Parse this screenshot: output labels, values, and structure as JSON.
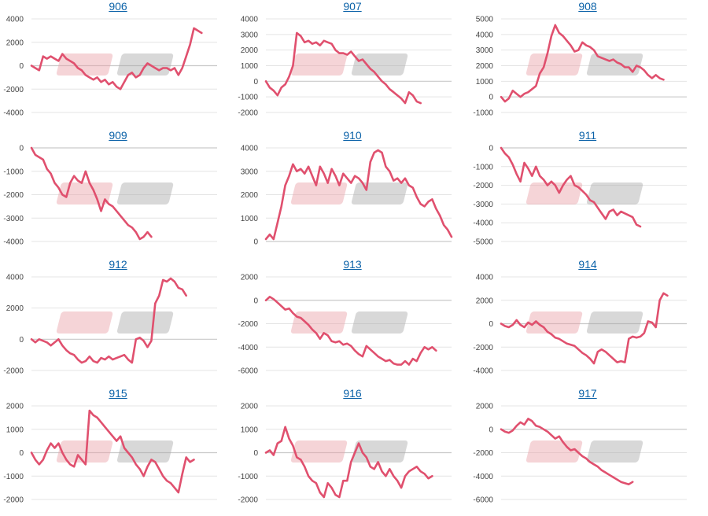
{
  "colors": {
    "line": "#e0506e",
    "title": "#0b62a8",
    "watermark_a": "#e8a0a6",
    "watermark_b": "#a8a8a8"
  },
  "watermark": {
    "icon": "minhyo-logo-watermark"
  },
  "chart_data": [
    {
      "type": "line",
      "title": "906",
      "yticks": [
        4000,
        2000,
        0,
        -2000,
        -4000
      ],
      "ylim": [
        -4000,
        4000
      ],
      "values": [
        0,
        -200,
        -400,
        800,
        600,
        800,
        600,
        400,
        1000,
        600,
        400,
        200,
        -200,
        -400,
        -800,
        -1000,
        -1200,
        -1000,
        -1400,
        -1200,
        -1600,
        -1400,
        -1800,
        -2000,
        -1400,
        -800,
        -600,
        -1000,
        -800,
        -200,
        200,
        0,
        -200,
        -400,
        -200,
        -200,
        -400,
        -200,
        -800,
        -200,
        800,
        1800,
        3200,
        3000,
        2800
      ]
    },
    {
      "type": "line",
      "title": "907",
      "yticks": [
        4000,
        3000,
        2000,
        1000,
        0,
        -1000,
        -2000
      ],
      "ylim": [
        -2000,
        4000
      ],
      "values": [
        0,
        -400,
        -600,
        -900,
        -400,
        -200,
        300,
        1000,
        3100,
        2900,
        2500,
        2600,
        2400,
        2500,
        2300,
        2600,
        2500,
        2400,
        2000,
        1800,
        1800,
        1700,
        1900,
        1600,
        1300,
        1400,
        1100,
        800,
        600,
        300,
        0,
        -200,
        -500,
        -700,
        -900,
        -1100,
        -1400,
        -700,
        -900,
        -1300,
        -1400
      ]
    },
    {
      "type": "line",
      "title": "908",
      "yticks": [
        5000,
        4000,
        3000,
        2000,
        1000,
        0,
        -1000
      ],
      "ylim": [
        -1000,
        5000
      ],
      "values": [
        0,
        -300,
        -100,
        400,
        200,
        0,
        200,
        300,
        500,
        700,
        1500,
        1900,
        2800,
        3900,
        4600,
        4100,
        3900,
        3600,
        3300,
        2900,
        3000,
        3500,
        3300,
        3200,
        3000,
        2600,
        2500,
        2400,
        2300,
        2400,
        2200,
        2100,
        1900,
        1900,
        1600,
        2000,
        1900,
        1700,
        1400,
        1200,
        1400,
        1200,
        1100
      ]
    },
    {
      "type": "line",
      "title": "909",
      "yticks": [
        0,
        -1000,
        -2000,
        -3000,
        -4000
      ],
      "ylim": [
        -4000,
        0
      ],
      "values": [
        0,
        -300,
        -400,
        -500,
        -900,
        -1100,
        -1500,
        -1700,
        -2000,
        -2100,
        -1500,
        -1200,
        -1400,
        -1500,
        -1000,
        -1500,
        -1800,
        -2200,
        -2700,
        -2200,
        -2400,
        -2500,
        -2700,
        -2900,
        -3100,
        -3300,
        -3400,
        -3600,
        -3900,
        -3800,
        -3600,
        -3800
      ]
    },
    {
      "type": "line",
      "title": "910",
      "yticks": [
        4000,
        3000,
        2000,
        1000,
        0
      ],
      "ylim": [
        0,
        4000
      ],
      "values": [
        100,
        300,
        100,
        800,
        1500,
        2400,
        2800,
        3300,
        3000,
        3100,
        2900,
        3200,
        2800,
        2400,
        3200,
        2900,
        2500,
        3100,
        2800,
        2400,
        2900,
        2700,
        2500,
        2800,
        2700,
        2500,
        2200,
        3400,
        3800,
        3900,
        3800,
        3200,
        3000,
        2600,
        2700,
        2500,
        2700,
        2400,
        2300,
        1900,
        1600,
        1500,
        1700,
        1800,
        1400,
        1100,
        700,
        500,
        200
      ]
    },
    {
      "type": "line",
      "title": "911",
      "yticks": [
        0,
        -1000,
        -2000,
        -3000,
        -4000,
        -5000
      ],
      "ylim": [
        -5000,
        0
      ],
      "values": [
        0,
        -300,
        -500,
        -900,
        -1400,
        -1800,
        -800,
        -1100,
        -1500,
        -1000,
        -1500,
        -1700,
        -2000,
        -1800,
        -2000,
        -2400,
        -2000,
        -1700,
        -1500,
        -2000,
        -2100,
        -2300,
        -2500,
        -2800,
        -2900,
        -3200,
        -3500,
        -3800,
        -3400,
        -3300,
        -3600,
        -3400,
        -3500,
        -3600,
        -3700,
        -4100,
        -4200
      ]
    },
    {
      "type": "line",
      "title": "912",
      "yticks": [
        4000,
        2000,
        0,
        -2000
      ],
      "ylim": [
        -2000,
        4000
      ],
      "values": [
        0,
        -200,
        0,
        -100,
        -200,
        -400,
        -200,
        0,
        -400,
        -700,
        -900,
        -1000,
        -1300,
        -1500,
        -1400,
        -1100,
        -1400,
        -1500,
        -1200,
        -1300,
        -1100,
        -1300,
        -1200,
        -1100,
        -1000,
        -1300,
        -1500,
        0,
        100,
        -100,
        -500,
        -100,
        2300,
        2800,
        3800,
        3700,
        3900,
        3700,
        3300,
        3200,
        2800
      ]
    },
    {
      "type": "line",
      "title": "913",
      "yticks": [
        2000,
        0,
        -2000,
        -4000,
        -6000
      ],
      "ylim": [
        -6000,
        2000
      ],
      "values": [
        0,
        300,
        100,
        -200,
        -500,
        -800,
        -700,
        -1100,
        -1400,
        -1500,
        -1800,
        -2100,
        -2500,
        -2800,
        -3300,
        -2800,
        -3000,
        -3500,
        -3600,
        -3500,
        -3800,
        -3700,
        -3900,
        -4300,
        -4600,
        -4800,
        -3900,
        -4200,
        -4500,
        -4800,
        -5000,
        -5200,
        -5100,
        -5400,
        -5500,
        -5500,
        -5200,
        -5500,
        -5000,
        -5200,
        -4500,
        -4000,
        -4200,
        -4000,
        -4300
      ]
    },
    {
      "type": "line",
      "title": "914",
      "yticks": [
        4000,
        2000,
        0,
        -2000,
        -4000
      ],
      "ylim": [
        -4000,
        4000
      ],
      "values": [
        0,
        -200,
        -300,
        -100,
        300,
        -100,
        -300,
        100,
        -100,
        200,
        -100,
        -300,
        -700,
        -900,
        -1200,
        -1300,
        -1500,
        -1700,
        -1800,
        -1900,
        -2200,
        -2500,
        -2700,
        -3000,
        -3400,
        -2400,
        -2200,
        -2400,
        -2700,
        -3000,
        -3300,
        -3200,
        -3300,
        -1300,
        -1100,
        -1200,
        -1100,
        -800,
        200,
        100,
        -300,
        2000,
        2600,
        2400
      ]
    },
    {
      "type": "line",
      "title": "915",
      "yticks": [
        2000,
        1000,
        0,
        -1000,
        -2000
      ],
      "ylim": [
        -2000,
        2000
      ],
      "values": [
        0,
        -300,
        -500,
        -300,
        100,
        400,
        200,
        400,
        0,
        -300,
        -500,
        -600,
        -100,
        -300,
        -500,
        1800,
        1600,
        1500,
        1300,
        1100,
        900,
        700,
        500,
        700,
        200,
        0,
        -200,
        -500,
        -700,
        -1000,
        -600,
        -300,
        -400,
        -700,
        -1000,
        -1200,
        -1300,
        -1500,
        -1700,
        -900,
        -200,
        -400,
        -300
      ]
    },
    {
      "type": "line",
      "title": "916",
      "yticks": [
        2000,
        1000,
        0,
        -1000,
        -2000
      ],
      "ylim": [
        -2000,
        2000
      ],
      "values": [
        0,
        100,
        -100,
        400,
        500,
        1100,
        600,
        300,
        -200,
        -300,
        -600,
        -1000,
        -1200,
        -1300,
        -1700,
        -1900,
        -1300,
        -1500,
        -1800,
        -1900,
        -1200,
        -1200,
        -400,
        0,
        400,
        0,
        -200,
        -600,
        -700,
        -400,
        -800,
        -1000,
        -700,
        -1000,
        -1200,
        -1500,
        -1000,
        -800,
        -700,
        -600,
        -800,
        -900,
        -1100,
        -1000
      ]
    },
    {
      "type": "line",
      "title": "917",
      "yticks": [
        2000,
        0,
        -2000,
        -4000,
        -6000
      ],
      "ylim": [
        -6000,
        2000
      ],
      "values": [
        0,
        -200,
        -300,
        -100,
        300,
        600,
        400,
        900,
        700,
        300,
        200,
        0,
        -200,
        -500,
        -800,
        -600,
        -1100,
        -1500,
        -1800,
        -1700,
        -2000,
        -2300,
        -2500,
        -2800,
        -3000,
        -3200,
        -3500,
        -3700,
        -3900,
        -4100,
        -4300,
        -4500,
        -4600,
        -4700,
        -4500
      ]
    }
  ]
}
